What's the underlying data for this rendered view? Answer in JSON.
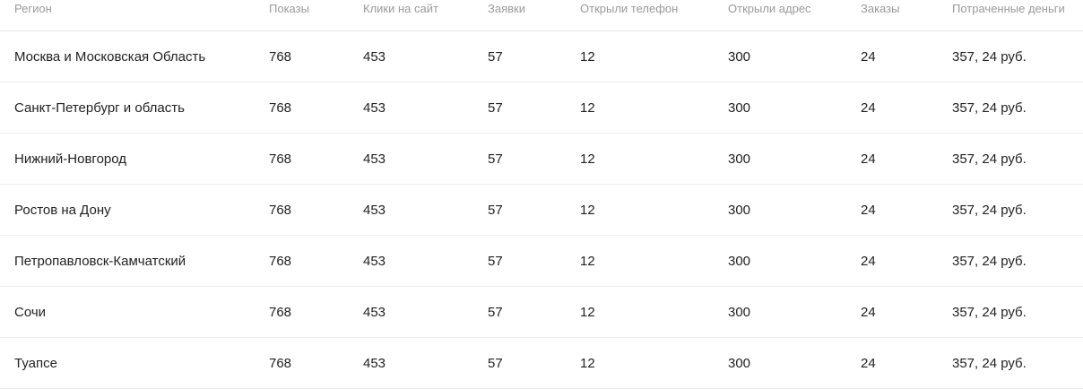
{
  "columns": [
    "Регион",
    "Показы",
    "Клики на сайт",
    "Заявки",
    "Открыли телефон",
    "Открыли адрес",
    "Заказы",
    "Потраченные деньги"
  ],
  "rows": [
    [
      "Москва и Московская Область",
      "768",
      "453",
      "57",
      "12",
      "300",
      "24",
      "357, 24 руб."
    ],
    [
      "Санкт-Петербург и область",
      "768",
      "453",
      "57",
      "12",
      "300",
      "24",
      "357, 24 руб."
    ],
    [
      "Нижний-Новгород",
      "768",
      "453",
      "57",
      "12",
      "300",
      "24",
      "357, 24 руб."
    ],
    [
      "Ростов на Дону",
      "768",
      "453",
      "57",
      "12",
      "300",
      "24",
      "357, 24 руб."
    ],
    [
      "Петропавловск-Камчатский",
      "768",
      "453",
      "57",
      "12",
      "300",
      "24",
      "357, 24 руб."
    ],
    [
      "Сочи",
      "768",
      "453",
      "57",
      "12",
      "300",
      "24",
      "357, 24 руб."
    ],
    [
      "Туапсе",
      "768",
      "453",
      "57",
      "12",
      "300",
      "24",
      "357, 24 руб."
    ]
  ]
}
